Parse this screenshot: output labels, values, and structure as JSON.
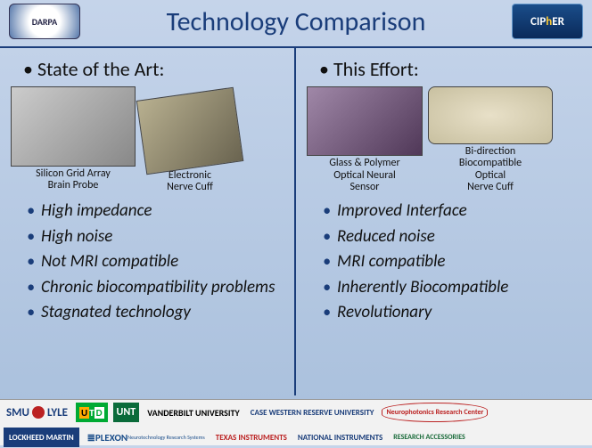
{
  "header": {
    "logo_left": "DARPA",
    "title": "Technology Comparison",
    "logo_right_pre": "CIP",
    "logo_right_mid": "h",
    "logo_right_post": "ER"
  },
  "left": {
    "subtitle": "State of the Art:",
    "images": [
      {
        "caption": "Silicon Grid Array\nBrain Probe"
      },
      {
        "caption": "Electronic\nNerve Cuff"
      }
    ],
    "bullets": [
      "High impedance",
      "High noise",
      "Not MRI compatible",
      "Chronic biocompatibility problems",
      "Stagnated technology"
    ]
  },
  "right": {
    "subtitle": "This Effort:",
    "images": [
      {
        "caption": "Glass & Polymer\nOptical Neural\nSensor"
      },
      {
        "caption": "Bi-direction\nBiocompatible\nOptical\nNerve Cuff"
      }
    ],
    "bullets": [
      "Improved Interface",
      "Reduced noise",
      "MRI compatible",
      "Inherently Biocompatible",
      "Revolutionary"
    ]
  },
  "footer": {
    "row1": {
      "smu": "SMU",
      "lyle": "LYLE",
      "utd_u": "U",
      "utd_t": "T",
      "utd_d": "D",
      "unt": "UNT",
      "vanderbilt": "VANDERBILT UNIVERSITY",
      "cwru": "CASE WESTERN RESERVE UNIVERSITY",
      "neuro": "Neurophotonics Research Center"
    },
    "row2": {
      "lockheed": "LOCKHEED MARTIN",
      "plexon": "≣PLEXON",
      "plexon_sub": "Neurotechnology Research Systems",
      "ti": "TEXAS INSTRUMENTS",
      "ni": "NATIONAL INSTRUMENTS",
      "ra": "RESEARCH ACCESSORIES"
    }
  },
  "colors": {
    "title_color": "#1a3d7a",
    "divider_color": "#1a3d7a",
    "bullet_text": "#111111",
    "bg_top": "#c5d4ea",
    "bg_bottom": "#a8bfdc"
  }
}
